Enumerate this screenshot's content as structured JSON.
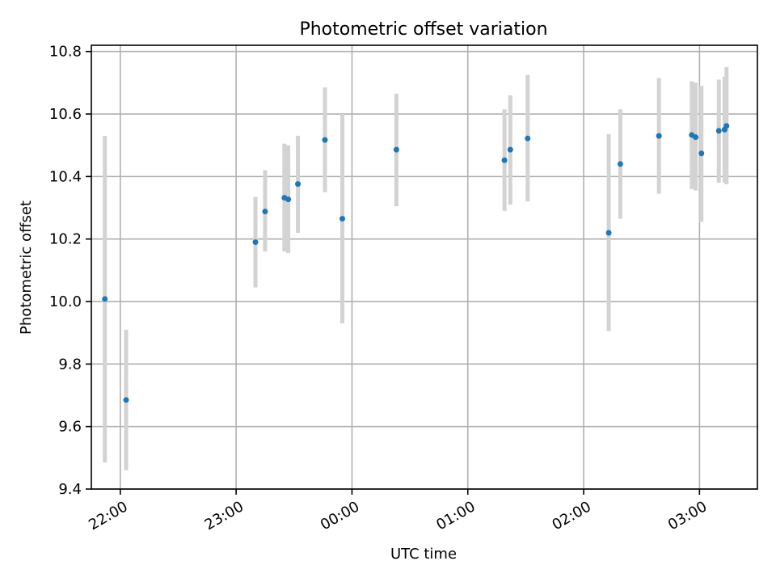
{
  "chart_data": {
    "type": "scatter",
    "title": "Photometric offset variation",
    "xlabel": "UTC time",
    "ylabel": "Photometric offset",
    "x_unit": "UTC hours relative to 00:00",
    "xlim": [
      "21:45",
      "03:30"
    ],
    "ylim": [
      9.4,
      10.82
    ],
    "x_ticks": [
      "22:00",
      "23:00",
      "00:00",
      "01:00",
      "02:00",
      "03:00"
    ],
    "y_ticks": [
      "9.4",
      "9.6",
      "9.8",
      "10.0",
      "10.2",
      "10.4",
      "10.6",
      "10.8"
    ],
    "grid": true,
    "colors": {
      "point": "#1f77b4",
      "errorbar": "#d3d3d3",
      "grid": "#b0b0b0"
    },
    "series": [
      {
        "points": [
          {
            "x": "21:52",
            "y": 10.008,
            "lo": 9.485,
            "hi": 10.53
          },
          {
            "x": "22:03",
            "y": 9.685,
            "lo": 9.46,
            "hi": 9.91
          },
          {
            "x": "23:10",
            "y": 10.19,
            "lo": 10.045,
            "hi": 10.335
          },
          {
            "x": "23:15",
            "y": 10.288,
            "lo": 10.16,
            "hi": 10.42
          },
          {
            "x": "23:25",
            "y": 10.332,
            "lo": 10.16,
            "hi": 10.505
          },
          {
            "x": "23:27",
            "y": 10.327,
            "lo": 10.155,
            "hi": 10.5
          },
          {
            "x": "23:32",
            "y": 10.376,
            "lo": 10.22,
            "hi": 10.53
          },
          {
            "x": "23:46",
            "y": 10.517,
            "lo": 10.35,
            "hi": 10.685
          },
          {
            "x": "23:55",
            "y": 10.265,
            "lo": 9.93,
            "hi": 10.6
          },
          {
            "x": "00:23",
            "y": 10.486,
            "lo": 10.305,
            "hi": 10.665
          },
          {
            "x": "01:19",
            "y": 10.452,
            "lo": 10.29,
            "hi": 10.615
          },
          {
            "x": "01:22",
            "y": 10.486,
            "lo": 10.31,
            "hi": 10.66
          },
          {
            "x": "01:31",
            "y": 10.522,
            "lo": 10.32,
            "hi": 10.725
          },
          {
            "x": "02:13",
            "y": 10.22,
            "lo": 9.905,
            "hi": 10.535
          },
          {
            "x": "02:19",
            "y": 10.44,
            "lo": 10.265,
            "hi": 10.615
          },
          {
            "x": "02:39",
            "y": 10.53,
            "lo": 10.345,
            "hi": 10.715
          },
          {
            "x": "02:56",
            "y": 10.533,
            "lo": 10.36,
            "hi": 10.705
          },
          {
            "x": "02:58",
            "y": 10.526,
            "lo": 10.355,
            "hi": 10.7
          },
          {
            "x": "03:01",
            "y": 10.474,
            "lo": 10.255,
            "hi": 10.69
          },
          {
            "x": "03:10",
            "y": 10.546,
            "lo": 10.38,
            "hi": 10.71
          },
          {
            "x": "03:13",
            "y": 10.55,
            "lo": 10.38,
            "hi": 10.72
          },
          {
            "x": "03:14",
            "y": 10.562,
            "lo": 10.375,
            "hi": 10.75
          }
        ]
      }
    ]
  }
}
